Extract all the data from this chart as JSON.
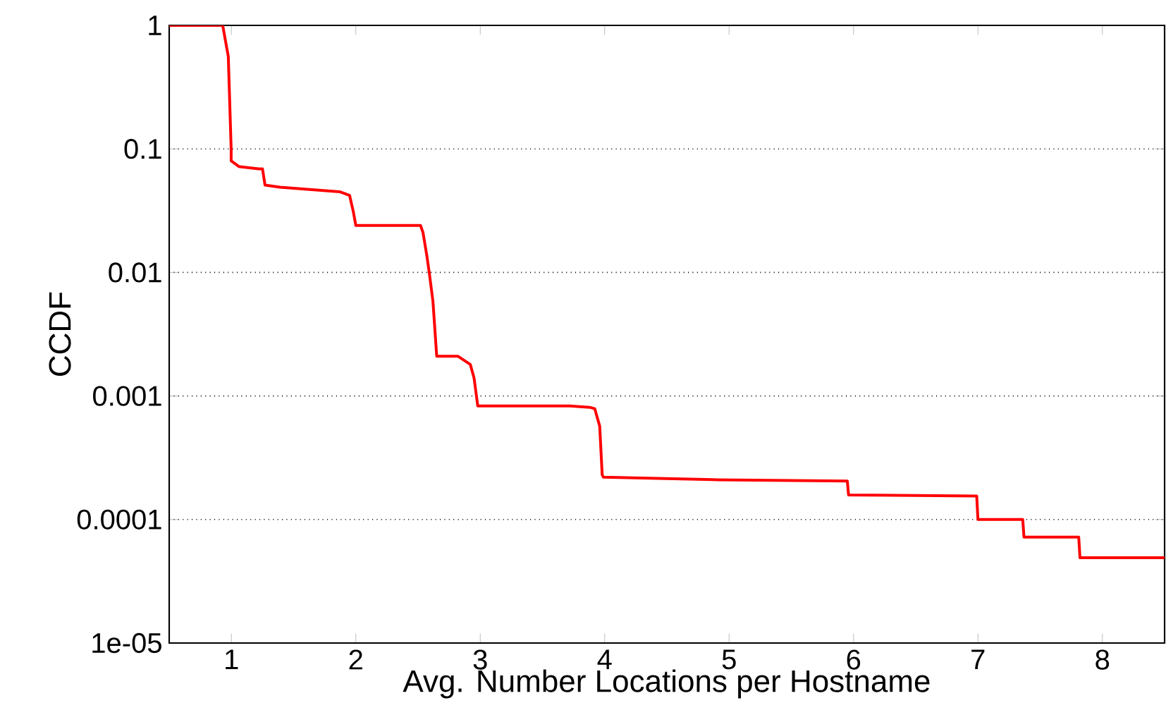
{
  "chart_data": {
    "type": "line",
    "xlabel": "Avg. Number Locations per Hostname",
    "ylabel": "CCDF",
    "x": [
      0.5,
      0.93,
      0.975,
      0.998,
      0.998,
      1.06,
      1.22,
      1.25,
      1.27,
      1.39,
      1.87,
      1.95,
      1.98,
      2.0,
      2.52,
      2.54,
      2.57,
      2.59,
      2.62,
      2.65,
      2.82,
      2.92,
      2.95,
      2.98,
      3.72,
      3.88,
      3.92,
      3.96,
      3.98,
      3.99,
      4.87,
      5.95,
      5.96,
      6.99,
      7.0,
      7.36,
      7.37,
      7.81,
      7.82,
      8.5
    ],
    "series": [
      {
        "color": "#ff0000",
        "values": [
          1,
          1,
          0.56,
          0.1,
          0.08,
          0.072,
          0.069,
          0.069,
          0.051,
          0.049,
          0.045,
          0.042,
          0.031,
          0.024,
          0.024,
          0.021,
          0.0138,
          0.01,
          0.0058,
          0.0021,
          0.0021,
          0.0018,
          0.0014,
          0.00083,
          0.00083,
          0.00081,
          0.00079,
          0.00057,
          0.00023,
          0.00022,
          0.00021,
          0.000205,
          0.000158,
          0.000155,
          0.0001,
          0.0001,
          7.2e-05,
          7.2e-05,
          4.9e-05,
          4.9e-05
        ]
      }
    ],
    "xlim": [
      0.5,
      8.5
    ],
    "xticks": [
      1,
      2,
      3,
      4,
      5,
      6,
      7,
      8
    ],
    "ylim": [
      1e-05,
      1
    ],
    "yticks": [
      {
        "value": 1e-05,
        "label": "1e-05"
      },
      {
        "value": 0.0001,
        "label": "0.0001"
      },
      {
        "value": 0.001,
        "label": "0.001"
      },
      {
        "value": 0.01,
        "label": "0.01"
      },
      {
        "value": 0.1,
        "label": "0.1"
      },
      {
        "value": 1,
        "label": "1"
      }
    ],
    "log": "y",
    "grid": "y",
    "marker": "none",
    "line_style": "solid"
  }
}
